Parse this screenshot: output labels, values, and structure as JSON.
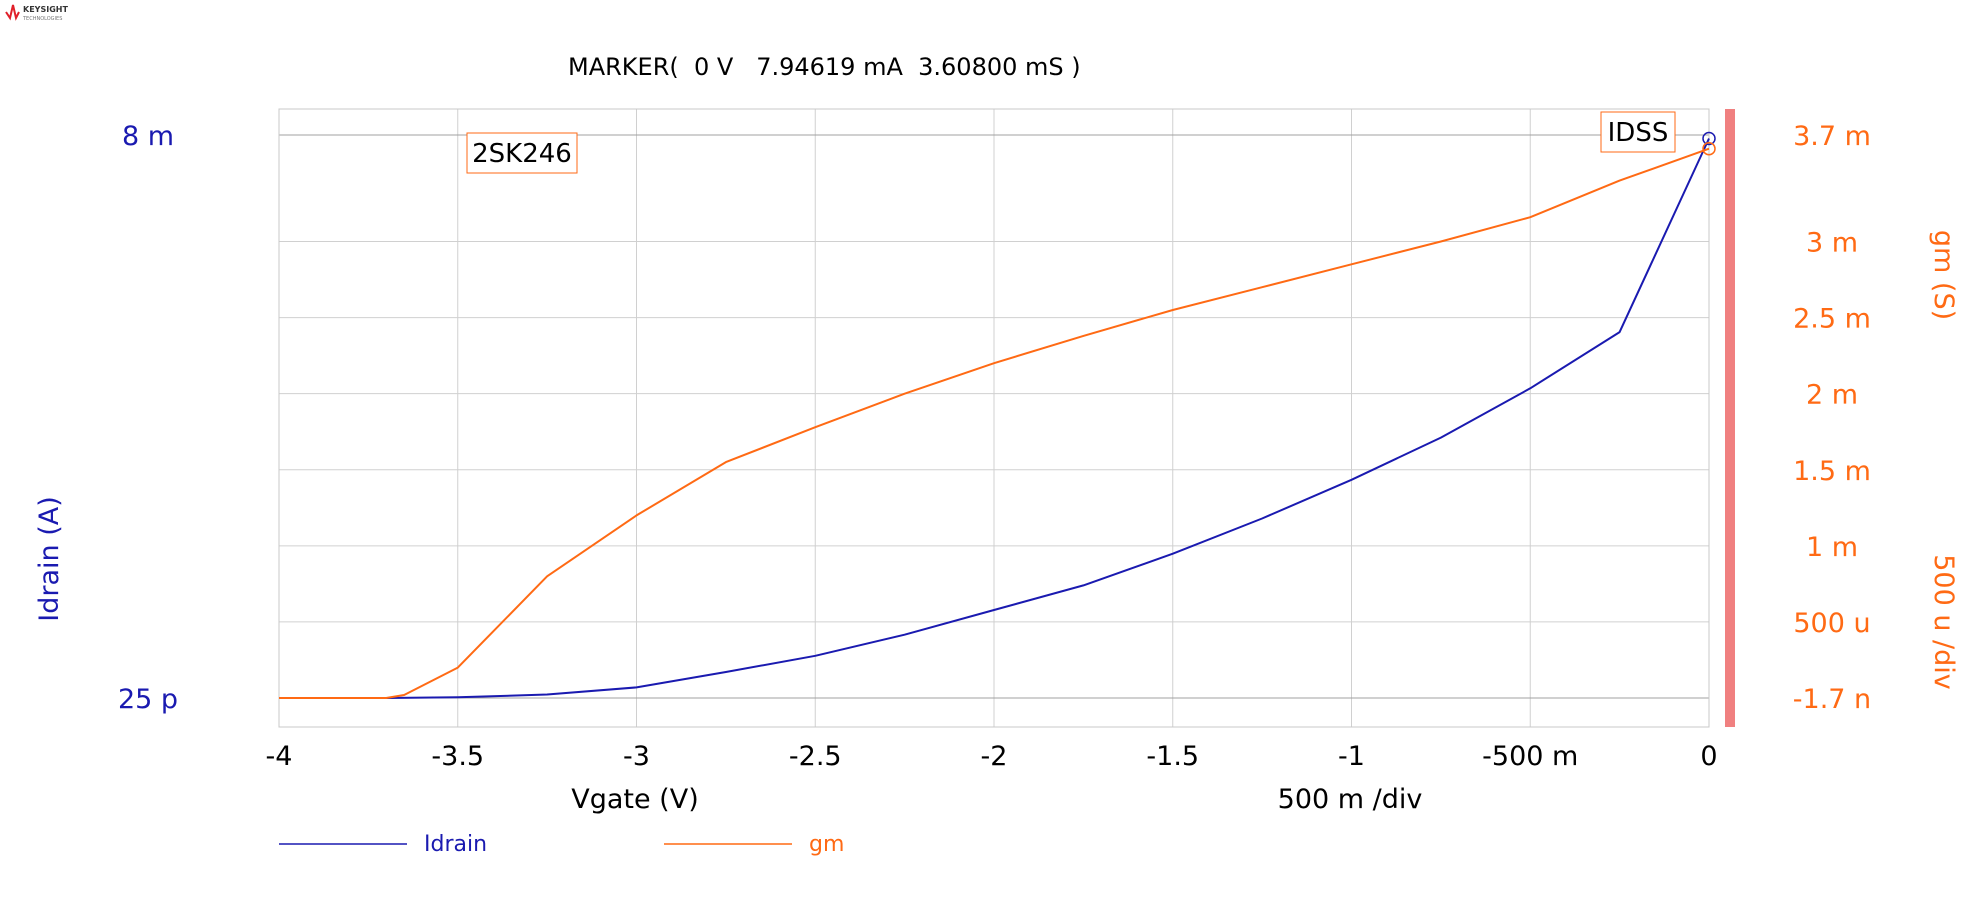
{
  "brand": {
    "name": "KEYSIGHT",
    "sub": "TECHNOLOGIES",
    "logo_icon": "keysight-wave-icon",
    "logo_color": "#e0202a"
  },
  "marker": {
    "text": "MARKER(  0 V   7.94619 mA  3.60800 mS )"
  },
  "colors": {
    "idrain": "#1a1ab0",
    "gm": "#ff6a14",
    "grid": "#d0d0d0",
    "frame": "#c8c8c8",
    "axis_left": "#1a1ab0",
    "axis_right": "#ff6a14",
    "scrollbar": "#f08080"
  },
  "chart_data": {
    "type": "line",
    "title": "",
    "annotation_device": "2SK246",
    "annotation_point": "IDSS",
    "xlabel": "Vgate (V)",
    "x_div_label": "500 m /div",
    "ylabel_left": "Idrain (A)",
    "ylabel_right": "gm (S)",
    "y_right_div_label": "500 u /div",
    "xlim": [
      -4,
      0
    ],
    "ylim_left": [
      0,
      0.008
    ],
    "ylim_right": [
      -1.7e-09,
      0.0037
    ],
    "grid": true,
    "legend_position": "bottom-left",
    "x_ticks": [
      -4,
      -3.5,
      -3,
      -2.5,
      -2,
      -1.5,
      -1,
      -0.5,
      0
    ],
    "x_tick_labels": [
      "-4",
      "-3.5",
      "-3",
      "-2.5",
      "-2",
      "-1.5",
      "-1",
      "-500 m",
      "0"
    ],
    "y_left_tick_labels": [
      {
        "value": 0.008,
        "label": "8 m"
      },
      {
        "value": 0,
        "label": "25 p"
      }
    ],
    "y_right_ticks": [
      {
        "value": 0.0037,
        "label": "3.7 m"
      },
      {
        "value": 0.003,
        "label": "3 m"
      },
      {
        "value": 0.0025,
        "label": "2.5 m"
      },
      {
        "value": 0.002,
        "label": "2 m"
      },
      {
        "value": 0.0015,
        "label": "1.5 m"
      },
      {
        "value": 0.001,
        "label": "1 m"
      },
      {
        "value": 0.0005,
        "label": "500 u"
      },
      {
        "value": 0,
        "label": "-1.7 n"
      }
    ],
    "series": [
      {
        "name": "Idrain",
        "axis": "left",
        "x": [
          -4.0,
          -3.7,
          -3.5,
          -3.25,
          -3.0,
          -2.75,
          -2.5,
          -2.25,
          -2.0,
          -1.75,
          -1.5,
          -1.25,
          -1.0,
          -0.75,
          -0.5,
          -0.25,
          0.0
        ],
        "y": [
          0.0,
          0.0,
          1e-05,
          5e-05,
          0.00015,
          0.00037,
          0.0006,
          0.0009,
          0.00125,
          0.0016,
          0.00205,
          0.00255,
          0.0031,
          0.0037,
          0.0044,
          0.0052,
          0.00795
        ]
      },
      {
        "name": "gm",
        "axis": "right",
        "x": [
          -4.0,
          -3.7,
          -3.65,
          -3.5,
          -3.25,
          -3.0,
          -2.75,
          -2.5,
          -2.25,
          -2.0,
          -1.75,
          -1.5,
          -1.25,
          -1.0,
          -0.75,
          -0.5,
          -0.25,
          0.0
        ],
        "y": [
          0.0,
          0.0,
          2e-05,
          0.0002,
          0.0008,
          0.0012,
          0.00155,
          0.00178,
          0.002,
          0.0022,
          0.00238,
          0.00255,
          0.0027,
          0.00285,
          0.003,
          0.00316,
          0.0034,
          0.00361
        ]
      }
    ]
  },
  "legend": [
    {
      "name": "Idrain",
      "color": "#1a1ab0"
    },
    {
      "name": "gm",
      "color": "#ff6a14"
    }
  ]
}
